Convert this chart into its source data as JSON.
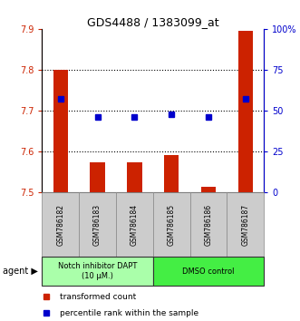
{
  "title": "GDS4488 / 1383099_at",
  "samples": [
    "GSM786182",
    "GSM786183",
    "GSM786184",
    "GSM786185",
    "GSM786186",
    "GSM786187"
  ],
  "bar_values": [
    7.8,
    7.575,
    7.575,
    7.592,
    7.515,
    7.895
  ],
  "bar_baseline": 7.5,
  "percentile_values": [
    57,
    46,
    46,
    48,
    46,
    57
  ],
  "ylim_left": [
    7.5,
    7.9
  ],
  "ylim_right": [
    0,
    100
  ],
  "yticks_left": [
    7.5,
    7.6,
    7.7,
    7.8,
    7.9
  ],
  "ytick_labels_left": [
    "7.5",
    "7.6",
    "7.7",
    "7.8",
    "7.9"
  ],
  "yticks_right": [
    0,
    25,
    50,
    75,
    100
  ],
  "ytick_labels_right": [
    "0",
    "25",
    "50",
    "75",
    "100%"
  ],
  "hlines": [
    7.6,
    7.7,
    7.8
  ],
  "bar_color": "#cc2200",
  "dot_color": "#0000cc",
  "agent_groups": [
    {
      "label": "Notch inhibitor DAPT\n(10 μM.)",
      "start": 0,
      "end": 3,
      "color": "#aaffaa"
    },
    {
      "label": "DMSO control",
      "start": 3,
      "end": 6,
      "color": "#44ee44"
    }
  ],
  "sample_box_color": "#cccccc",
  "legend_bar_label": "transformed count",
  "legend_dot_label": "percentile rank within the sample",
  "agent_label": "agent",
  "bar_width": 0.4
}
